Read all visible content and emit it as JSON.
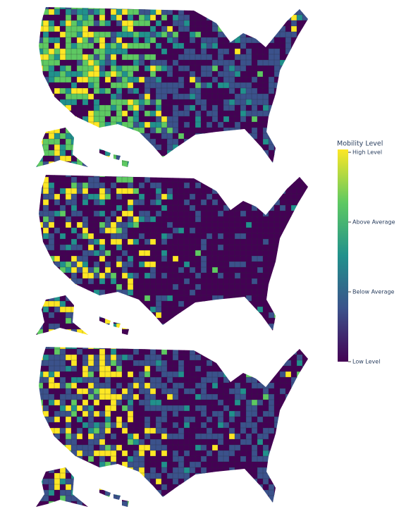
{
  "colorbar": {
    "title": "Mobility Level",
    "range": [
      0,
      3
    ],
    "ticks": [
      {
        "value": 3,
        "label": "High Level"
      },
      {
        "value": 2,
        "label": "Above Average"
      },
      {
        "value": 1,
        "label": "Below Average"
      },
      {
        "value": 0,
        "label": "Low Level"
      }
    ]
  }
}
